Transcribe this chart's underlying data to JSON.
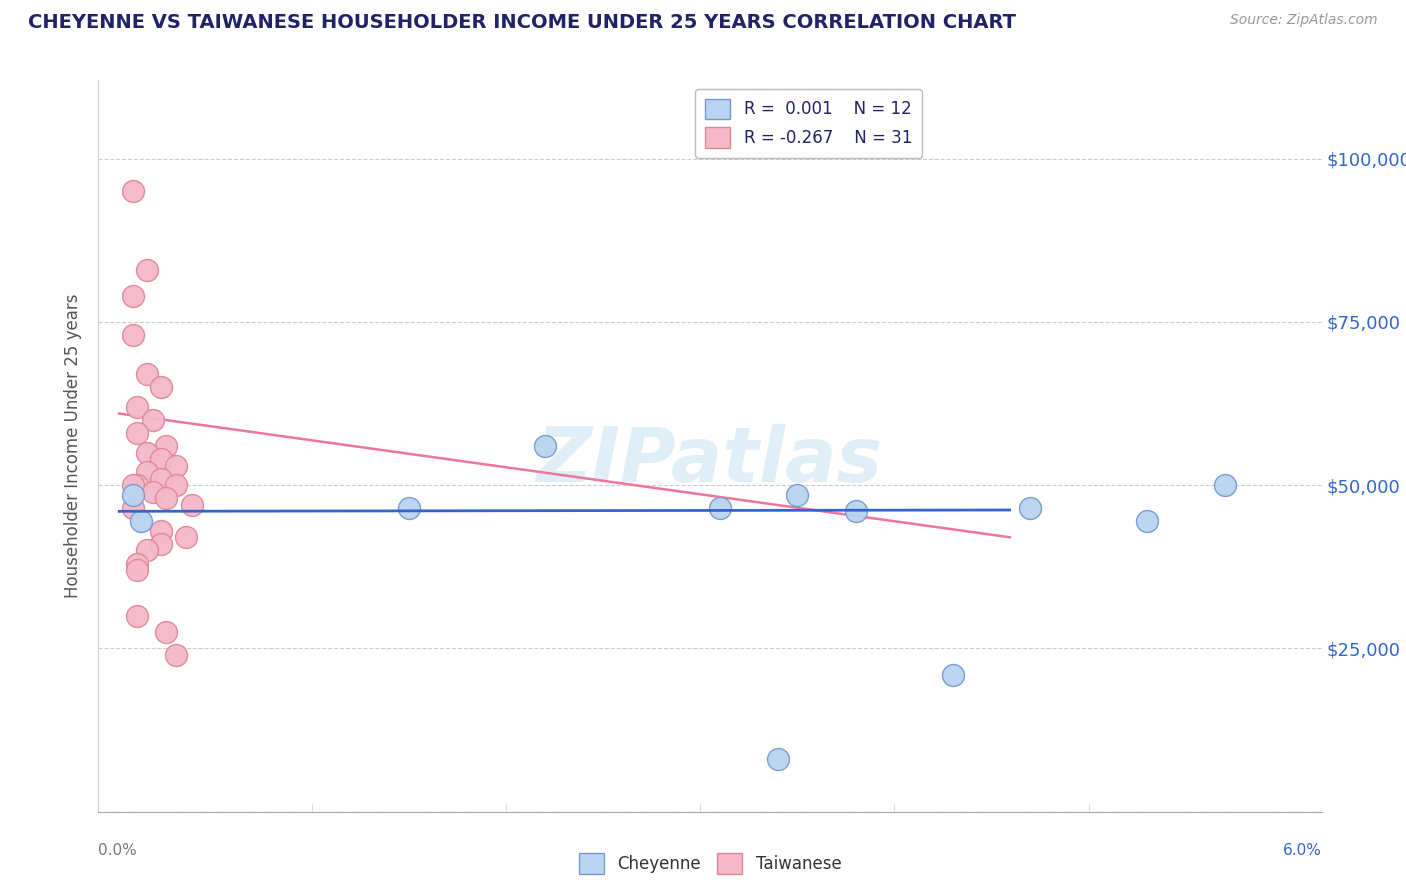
{
  "title": "CHEYENNE VS TAIWANESE HOUSEHOLDER INCOME UNDER 25 YEARS CORRELATION CHART",
  "source": "Source: ZipAtlas.com",
  "ylabel": "Householder Income Under 25 years",
  "watermark": "ZIPatlas",
  "xlim": [
    -0.001,
    0.062
  ],
  "ylim": [
    0,
    112000
  ],
  "yticks": [
    0,
    25000,
    50000,
    75000,
    100000
  ],
  "ytick_labels": [
    "",
    "$25,000",
    "$50,000",
    "$75,000",
    "$100,000"
  ],
  "legend_blue_r": "R =  0.001",
  "legend_blue_n": "N = 12",
  "legend_pink_r": "R = -0.267",
  "legend_pink_n": "N = 31",
  "cheyenne_color": "#b8d4f0",
  "taiwanese_color": "#f5b8c8",
  "cheyenne_edge": "#7799cc",
  "taiwanese_edge": "#dd8899",
  "blue_line_color": "#3366cc",
  "pink_line_color": "#ee7799",
  "cheyenne_scatter": [
    [
      0.0008,
      48500
    ],
    [
      0.0012,
      44500
    ],
    [
      0.015,
      46500
    ],
    [
      0.022,
      56000
    ],
    [
      0.031,
      46500
    ],
    [
      0.038,
      46000
    ],
    [
      0.035,
      48500
    ],
    [
      0.043,
      21000
    ],
    [
      0.047,
      46500
    ],
    [
      0.034,
      8000
    ],
    [
      0.053,
      44500
    ],
    [
      0.057,
      50000
    ]
  ],
  "taiwanese_scatter": [
    [
      0.0008,
      95000
    ],
    [
      0.0008,
      79000
    ],
    [
      0.0015,
      83000
    ],
    [
      0.0008,
      73000
    ],
    [
      0.0015,
      67000
    ],
    [
      0.0022,
      65000
    ],
    [
      0.001,
      62000
    ],
    [
      0.0018,
      60000
    ],
    [
      0.001,
      58000
    ],
    [
      0.0025,
      56000
    ],
    [
      0.0015,
      55000
    ],
    [
      0.0022,
      54000
    ],
    [
      0.003,
      53000
    ],
    [
      0.0015,
      52000
    ],
    [
      0.0022,
      51000
    ],
    [
      0.001,
      50000
    ],
    [
      0.003,
      50000
    ],
    [
      0.0008,
      50000
    ],
    [
      0.0018,
      49000
    ],
    [
      0.0025,
      48000
    ],
    [
      0.0038,
      47000
    ],
    [
      0.0008,
      46500
    ],
    [
      0.0022,
      43000
    ],
    [
      0.0035,
      42000
    ],
    [
      0.0022,
      41000
    ],
    [
      0.0015,
      40000
    ],
    [
      0.001,
      38000
    ],
    [
      0.001,
      37000
    ],
    [
      0.001,
      30000
    ],
    [
      0.0025,
      27500
    ],
    [
      0.003,
      24000
    ]
  ],
  "blue_trend_x": [
    0.0,
    0.046
  ],
  "blue_trend_y": [
    46000,
    46200
  ],
  "pink_trend_x": [
    0.0,
    0.046
  ],
  "pink_trend_y": [
    61000,
    42000
  ]
}
